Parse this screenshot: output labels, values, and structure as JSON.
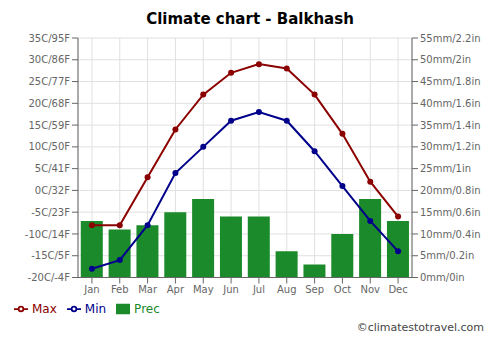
{
  "chart_data": {
    "type": "bar",
    "title": "Climate chart - Balkhash",
    "categories": [
      "Jan",
      "Feb",
      "Mar",
      "Apr",
      "May",
      "Jun",
      "Jul",
      "Aug",
      "Sep",
      "Oct",
      "Nov",
      "Dec"
    ],
    "series": [
      {
        "name": "Prec",
        "type": "bar",
        "axis": "y2",
        "color": "#1a8a2a",
        "values": [
          13,
          11,
          12,
          15,
          18,
          14,
          14,
          6,
          3,
          10,
          18,
          13
        ]
      },
      {
        "name": "Min",
        "type": "line",
        "color": "#00008B",
        "marker": "circle",
        "values": [
          -18,
          -16,
          -8,
          4,
          10,
          16,
          18,
          16,
          9,
          1,
          -7,
          -14
        ]
      },
      {
        "name": "Max",
        "type": "line",
        "color": "#8B0000",
        "marker": "circle",
        "values": [
          -8,
          -8,
          3,
          14,
          22,
          27,
          29,
          28,
          22,
          13,
          2,
          -6
        ]
      }
    ],
    "ylim": [
      -20,
      35
    ],
    "yticks": [
      {
        "value": -20,
        "label": "-20C/-4F"
      },
      {
        "value": -15,
        "label": "-15C/5F"
      },
      {
        "value": -10,
        "label": "-10C/14F"
      },
      {
        "value": -5,
        "label": "-5C/23F"
      },
      {
        "value": 0,
        "label": "0C/32F"
      },
      {
        "value": 5,
        "label": "5C/41F"
      },
      {
        "value": 10,
        "label": "10C/50F"
      },
      {
        "value": 15,
        "label": "15C/59F"
      },
      {
        "value": 20,
        "label": "20C/68F"
      },
      {
        "value": 25,
        "label": "25C/77F"
      },
      {
        "value": 30,
        "label": "30C/86F"
      },
      {
        "value": 35,
        "label": "35C/95F"
      }
    ],
    "y2lim": [
      0,
      55
    ],
    "y2ticks": [
      {
        "value": 0,
        "label": "0mm/0in"
      },
      {
        "value": 5,
        "label": "5mm/0.2in"
      },
      {
        "value": 10,
        "label": "10mm/0.4in"
      },
      {
        "value": 15,
        "label": "15mm/0.6in"
      },
      {
        "value": 20,
        "label": "20mm/0.8in"
      },
      {
        "value": 25,
        "label": "25mm/1in"
      },
      {
        "value": 30,
        "label": "30mm/1.2in"
      },
      {
        "value": 35,
        "label": "35mm/1.4in"
      },
      {
        "value": 40,
        "label": "40mm/1.6in"
      },
      {
        "value": 45,
        "label": "45mm/1.8in"
      },
      {
        "value": 50,
        "label": "50mm/2in"
      },
      {
        "value": 55,
        "label": "55mm/2.2in"
      }
    ],
    "grid": true,
    "legend": "bottom",
    "annotations": [
      "©climatestotravel.com"
    ]
  }
}
